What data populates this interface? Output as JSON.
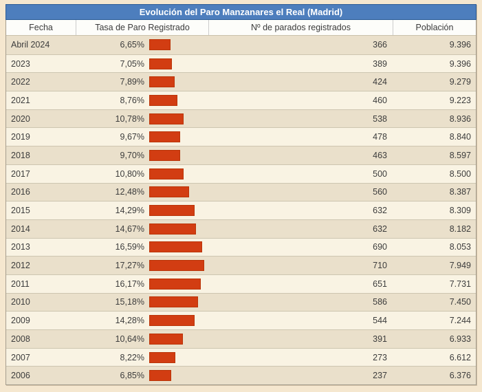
{
  "title": "Evolución del Paro Manzanares el Real (Madrid)",
  "columns": [
    "Fecha",
    "Tasa de Paro Registrado",
    "Nº de parados registrados",
    "Población"
  ],
  "rows": [
    {
      "fecha": "Abril 2024",
      "tasa": "6,65%",
      "tasa_value": 6.65,
      "parados": "366",
      "poblacion": "9.396"
    },
    {
      "fecha": "2023",
      "tasa": "7,05%",
      "tasa_value": 7.05,
      "parados": "389",
      "poblacion": "9.396"
    },
    {
      "fecha": "2022",
      "tasa": "7,89%",
      "tasa_value": 7.89,
      "parados": "424",
      "poblacion": "9.279"
    },
    {
      "fecha": "2021",
      "tasa": "8,76%",
      "tasa_value": 8.76,
      "parados": "460",
      "poblacion": "9.223"
    },
    {
      "fecha": "2020",
      "tasa": "10,78%",
      "tasa_value": 10.78,
      "parados": "538",
      "poblacion": "8.936"
    },
    {
      "fecha": "2019",
      "tasa": "9,67%",
      "tasa_value": 9.67,
      "parados": "478",
      "poblacion": "8.840"
    },
    {
      "fecha": "2018",
      "tasa": "9,70%",
      "tasa_value": 9.7,
      "parados": "463",
      "poblacion": "8.597"
    },
    {
      "fecha": "2017",
      "tasa": "10,80%",
      "tasa_value": 10.8,
      "parados": "500",
      "poblacion": "8.500"
    },
    {
      "fecha": "2016",
      "tasa": "12,48%",
      "tasa_value": 12.48,
      "parados": "560",
      "poblacion": "8.387"
    },
    {
      "fecha": "2015",
      "tasa": "14,29%",
      "tasa_value": 14.29,
      "parados": "632",
      "poblacion": "8.309"
    },
    {
      "fecha": "2014",
      "tasa": "14,67%",
      "tasa_value": 14.67,
      "parados": "632",
      "poblacion": "8.182"
    },
    {
      "fecha": "2013",
      "tasa": "16,59%",
      "tasa_value": 16.59,
      "parados": "690",
      "poblacion": "8.053"
    },
    {
      "fecha": "2012",
      "tasa": "17,27%",
      "tasa_value": 17.27,
      "parados": "710",
      "poblocion_typo_guard": null,
      "poblacion": "7.949"
    },
    {
      "fecha": "2011",
      "tasa": "16,17%",
      "tasa_value": 16.17,
      "parados": "651",
      "poblacion": "7.731"
    },
    {
      "fecha": "2010",
      "tasa": "15,18%",
      "tasa_value": 15.18,
      "parados": "586",
      "poblacion": "7.450"
    },
    {
      "fecha": "2009",
      "tasa": "14,28%",
      "tasa_value": 14.28,
      "parados": "544",
      "poblacion": "7.244"
    },
    {
      "fecha": "2008",
      "tasa": "10,64%",
      "tasa_value": 10.64,
      "parados": "391",
      "poblacion": "6.933"
    },
    {
      "fecha": "2007",
      "tasa": "8,22%",
      "tasa_value": 8.22,
      "parados": "273",
      "poblacion": "6.612"
    },
    {
      "fecha": "2006",
      "tasa": "6,85%",
      "tasa_value": 6.85,
      "parados": "237",
      "poblacion": "6.376"
    }
  ],
  "colors": {
    "title_bg": "#4d7ebd",
    "title_border": "#2b5b95",
    "bar": "#d23d12",
    "row_dark": "#eae0cb",
    "row_light": "#f9f3e3",
    "page_bg": "#f5e7cf"
  },
  "chart_data": {
    "type": "table",
    "title": "Evolución del Paro Manzanares el Real (Madrid)",
    "columns": [
      "Fecha",
      "Tasa de Paro Registrado",
      "Nº de parados registrados",
      "Población"
    ],
    "categories": [
      "Abril 2024",
      "2023",
      "2022",
      "2021",
      "2020",
      "2019",
      "2018",
      "2017",
      "2016",
      "2015",
      "2014",
      "2013",
      "2012",
      "2011",
      "2010",
      "2009",
      "2008",
      "2007",
      "2006"
    ],
    "series": [
      {
        "name": "Tasa de Paro Registrado (%)",
        "values": [
          6.65,
          7.05,
          7.89,
          8.76,
          10.78,
          9.67,
          9.7,
          10.8,
          12.48,
          14.29,
          14.67,
          16.59,
          17.27,
          16.17,
          15.18,
          14.28,
          10.64,
          8.22,
          6.85
        ]
      },
      {
        "name": "Nº de parados registrados",
        "values": [
          366,
          389,
          424,
          460,
          538,
          478,
          463,
          500,
          560,
          632,
          632,
          690,
          710,
          651,
          586,
          544,
          391,
          273,
          237
        ]
      },
      {
        "name": "Población",
        "values": [
          9396,
          9396,
          9279,
          9223,
          8936,
          8840,
          8597,
          8500,
          8387,
          8309,
          8182,
          8053,
          7949,
          7731,
          7450,
          7244,
          6933,
          6612,
          6376
        ]
      }
    ],
    "bar_style": "horizontal in-cell bars, fixed left origin, width proportional to Tasa de Paro",
    "legend_position": "none",
    "grid": false
  }
}
